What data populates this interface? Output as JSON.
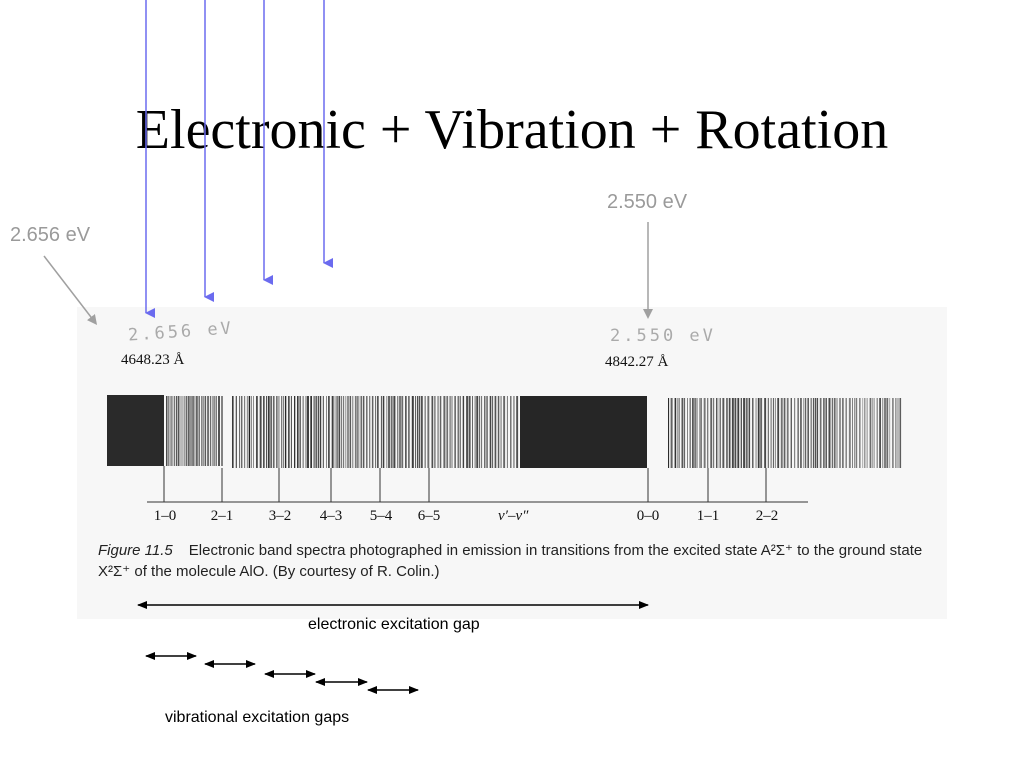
{
  "title": "Electronic + Vibration + Rotation",
  "energy_labels": {
    "left": "2.656 eV",
    "right": "2.550 eV"
  },
  "figure": {
    "handwritten_left": "2.656 eV",
    "handwritten_right": "2.550 eV",
    "wavelength_left": "4648.23 Å",
    "wavelength_right": "4842.27 Å",
    "transitions": [
      "1–0",
      "2–1",
      "3–2",
      "4–3",
      "5–4",
      "6–5",
      "0–0",
      "1–1",
      "2–2"
    ],
    "axis_label": "v′–v″",
    "caption_figure": "Figure 11.5",
    "caption_text": "Electronic band spectra photographed in emission in transitions from the excited state A²Σ⁺ to the ground state X²Σ⁺ of the molecule AlO. (By courtesy of R. Colin.)"
  },
  "gaps": {
    "electronic": "electronic excitation gap",
    "vibrational": "vibrational excitation gaps"
  },
  "colors": {
    "blue_arrows": "#6b6bef",
    "gray_arrows": "#a0a0a0",
    "spectrum_dark": "#2a2a2a"
  }
}
